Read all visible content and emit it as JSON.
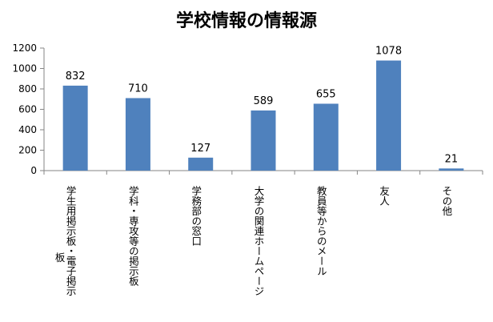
{
  "chart_data": {
    "type": "bar",
    "title": "学校情報の情報源",
    "categories": [
      [
        "学生用掲示板・電子掲示",
        "板"
      ],
      [
        "学科・専攻等の掲示板"
      ],
      [
        "学務部の窓口"
      ],
      [
        "大学の関連ホームページ"
      ],
      [
        "教員等からのメール"
      ],
      [
        "友人"
      ],
      [
        "その他"
      ]
    ],
    "values": [
      832,
      710,
      127,
      589,
      655,
      1078,
      21
    ],
    "data_labels": [
      "832",
      "710",
      "127",
      "589",
      "655",
      "1078",
      "21"
    ],
    "yticks": [
      "0",
      "200",
      "400",
      "600",
      "800",
      "1000",
      "1200"
    ],
    "ylim": [
      0,
      1200
    ],
    "grid": false,
    "legend": "none",
    "bar_color": "#4f81bd"
  }
}
